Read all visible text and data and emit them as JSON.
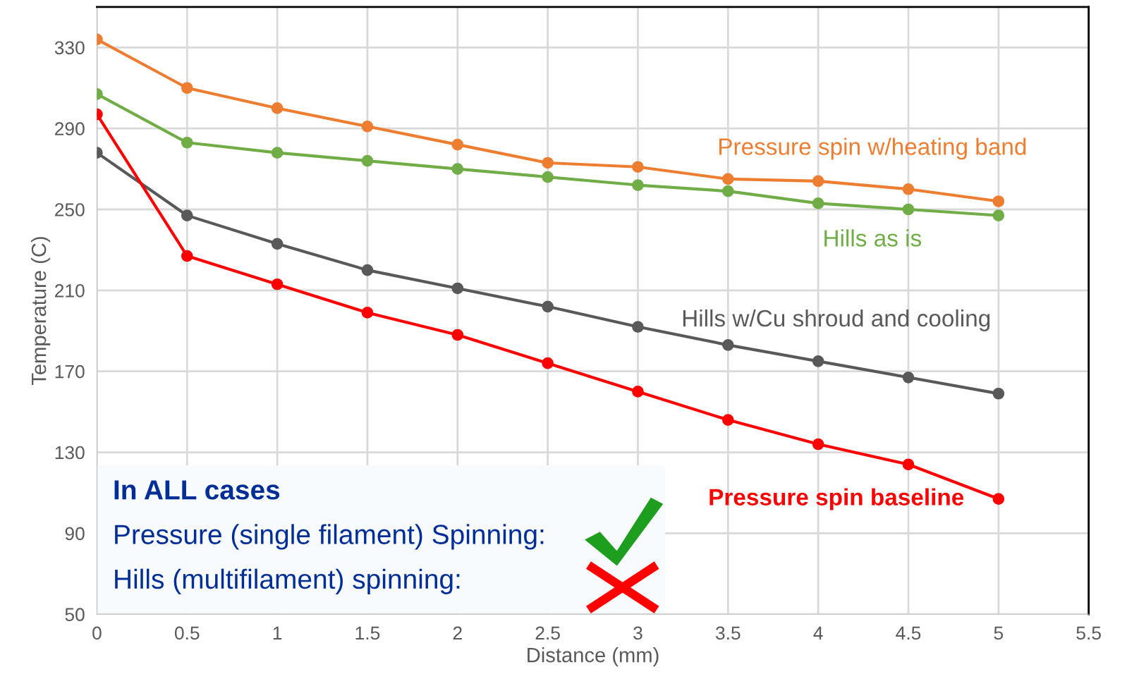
{
  "chart_data": {
    "type": "line",
    "xlabel": "Distance (mm)",
    "ylabel": "Temperature (C)",
    "x": [
      0,
      0.5,
      1,
      1.5,
      2,
      2.5,
      3,
      3.5,
      4,
      4.5,
      5
    ],
    "series": [
      {
        "name": "Pressure spin w/heating band",
        "color": "#ed7d31",
        "values": [
          334,
          310,
          300,
          291,
          282,
          273,
          271,
          265,
          264,
          260,
          254
        ]
      },
      {
        "name": "Hills as is",
        "color": "#70ad47",
        "values": [
          307,
          283,
          278,
          274,
          270,
          266,
          262,
          259,
          253,
          250,
          247
        ]
      },
      {
        "name": "Hills w/Cu shroud and cooling",
        "color": "#595959",
        "values": [
          278,
          247,
          233,
          220,
          211,
          202,
          192,
          183,
          175,
          167,
          159
        ]
      },
      {
        "name": "Pressure spin baseline",
        "color": "#ff0000",
        "values": [
          297,
          227,
          213,
          199,
          188,
          174,
          160,
          146,
          134,
          124,
          107
        ]
      }
    ],
    "xlim": [
      0,
      5.5
    ],
    "xticks": [
      0,
      0.5,
      1,
      1.5,
      2,
      2.5,
      3,
      3.5,
      4,
      4.5,
      5,
      5.5
    ],
    "ylim": [
      50,
      350
    ],
    "yticks": [
      50,
      90,
      130,
      170,
      210,
      250,
      290,
      330
    ],
    "grid": true,
    "marker": "circle",
    "line_style": "solid",
    "annotations": [
      "In ALL cases",
      "Pressure (single filament) Spinning:",
      "Hills (multifilament) spinning:"
    ]
  }
}
